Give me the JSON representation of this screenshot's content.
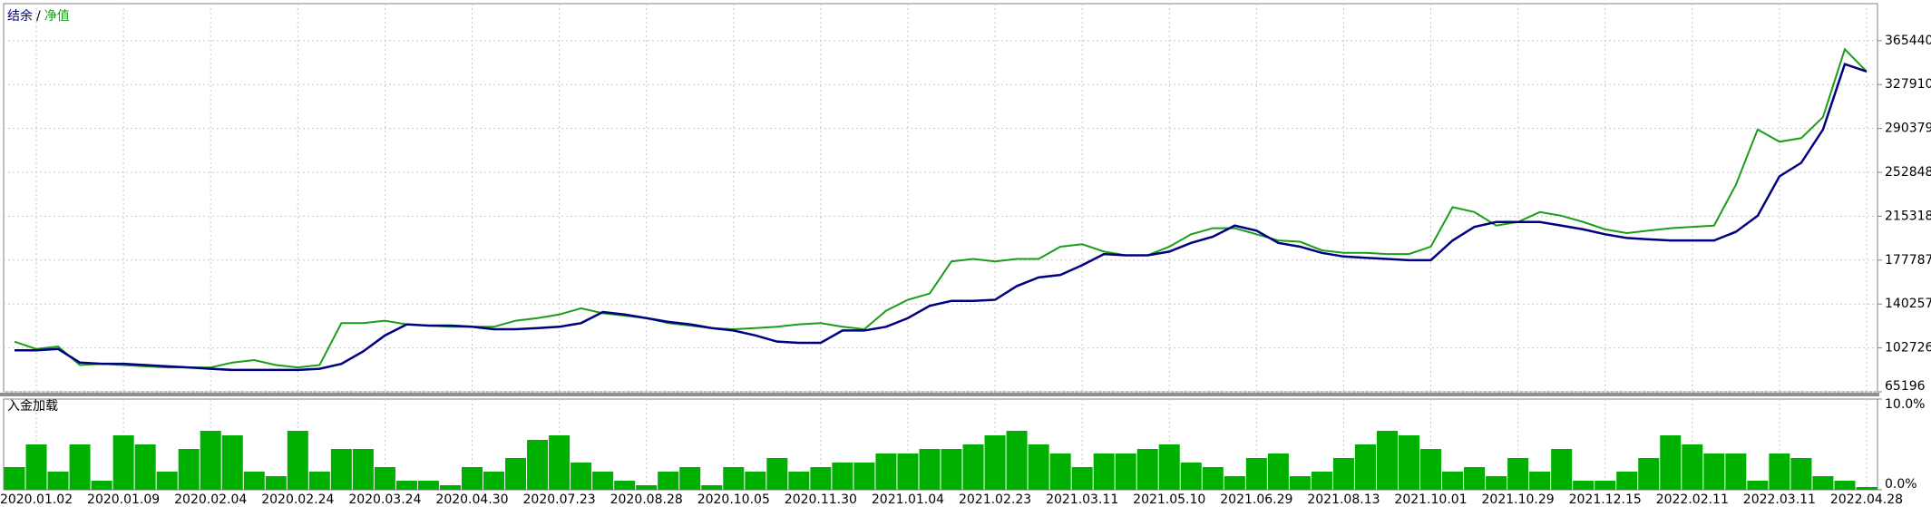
{
  "chart_data": [
    {
      "type": "line",
      "legend_separator": "/",
      "categories": [
        null,
        "2020.01.02",
        null,
        null,
        null,
        "2020.01.09",
        null,
        null,
        null,
        "2020.02.04",
        null,
        null,
        null,
        "2020.02.24",
        null,
        null,
        null,
        "2020.03.24",
        null,
        null,
        null,
        "2020.04.30",
        null,
        null,
        null,
        "2020.07.23",
        null,
        null,
        null,
        "2020.08.28",
        null,
        null,
        null,
        "2020.10.05",
        null,
        null,
        null,
        "2020.11.30",
        null,
        null,
        null,
        "2021.01.04",
        null,
        null,
        null,
        "2021.02.23",
        null,
        null,
        null,
        "2021.03.11",
        null,
        null,
        null,
        "2021.05.10",
        null,
        null,
        null,
        "2021.06.29",
        null,
        null,
        null,
        "2021.08.13",
        null,
        null,
        null,
        "2021.10.01",
        null,
        null,
        null,
        "2021.10.29",
        null,
        null,
        null,
        "2021.12.15",
        null,
        null,
        null,
        "2022.02.11",
        null,
        null,
        null,
        "2022.03.11",
        null,
        null,
        null,
        "2022.04.28"
      ],
      "series": [
        {
          "name": "结余",
          "color": "#000080",
          "values": [
            100700,
            100700,
            101800,
            90200,
            89100,
            89100,
            88100,
            87000,
            86000,
            84900,
            83900,
            83900,
            83900,
            83900,
            84900,
            89100,
            99700,
            113400,
            122900,
            121800,
            121800,
            120800,
            118700,
            118700,
            119700,
            120800,
            123900,
            133400,
            131300,
            128200,
            125000,
            122900,
            119700,
            117600,
            113400,
            108100,
            107100,
            107100,
            117600,
            117600,
            120800,
            128200,
            138700,
            142900,
            142900,
            143900,
            155600,
            163000,
            165100,
            173500,
            183000,
            181900,
            181900,
            185100,
            192500,
            197800,
            207300,
            203000,
            192500,
            189300,
            184000,
            180900,
            179800,
            178800,
            177700,
            177700,
            194600,
            206200,
            210400,
            210400,
            210400,
            207300,
            204100,
            199900,
            196700,
            195600,
            194600,
            194600,
            194600,
            202000,
            215700,
            249400,
            261000,
            289500,
            345400,
            339100
          ]
        },
        {
          "name": "净值",
          "color": "#1a9e1a",
          "values": [
            108100,
            101800,
            103900,
            88100,
            89100,
            88100,
            87000,
            86000,
            86000,
            86000,
            90200,
            92300,
            88100,
            86000,
            88100,
            123900,
            123900,
            126000,
            122900,
            121800,
            120800,
            120800,
            120800,
            126000,
            128200,
            131300,
            136600,
            132400,
            130300,
            128200,
            123900,
            121800,
            119700,
            118700,
            119700,
            120800,
            122900,
            123900,
            120800,
            118700,
            134500,
            143900,
            149200,
            176700,
            178800,
            176700,
            178800,
            178800,
            189300,
            191400,
            185100,
            181900,
            181900,
            189300,
            199900,
            205100,
            205100,
            199900,
            194600,
            193500,
            186200,
            184000,
            184000,
            183000,
            183000,
            189300,
            223100,
            218900,
            207300,
            210400,
            218900,
            215700,
            210400,
            204100,
            200900,
            203000,
            205100,
            206200,
            207300,
            242100,
            289500,
            279000,
            282100,
            300100,
            358100,
            339100
          ]
        }
      ],
      "ylim": [
        65196,
        397100
      ],
      "yticks": [
        65196,
        102726,
        140257,
        177787,
        215318,
        252848,
        290379,
        327910,
        365440
      ],
      "grid": true
    },
    {
      "type": "bar",
      "title": "入金加载",
      "color": "#00b000",
      "values": [
        2.5,
        5,
        2,
        5,
        1,
        6,
        5,
        2,
        4.5,
        6.5,
        6,
        2,
        1.5,
        6.5,
        2,
        4.5,
        4.5,
        2.5,
        1,
        1,
        0.5,
        2.5,
        2,
        3.5,
        5.5,
        6,
        3,
        2,
        1,
        0.5,
        2,
        2.5,
        0.5,
        2.5,
        2,
        3.5,
        2,
        2.5,
        3,
        3,
        4,
        4,
        4.5,
        4.5,
        5,
        6,
        6.5,
        5,
        4,
        2.5,
        4,
        4,
        4.5,
        5,
        3,
        2.5,
        1.5,
        3.5,
        4,
        1.5,
        2,
        3.5,
        5,
        6.5,
        6,
        4.5,
        2,
        2.5,
        1.5,
        3.5,
        2,
        4.5,
        1,
        1,
        2,
        3.5,
        6,
        5,
        4,
        4,
        1,
        4,
        3.5,
        1.5,
        1,
        0.3
      ],
      "ylim": [
        0,
        10
      ],
      "yticks": [
        {
          "value": 0,
          "label": "0.0%"
        },
        {
          "value": 10,
          "label": "10.0%"
        }
      ]
    }
  ]
}
